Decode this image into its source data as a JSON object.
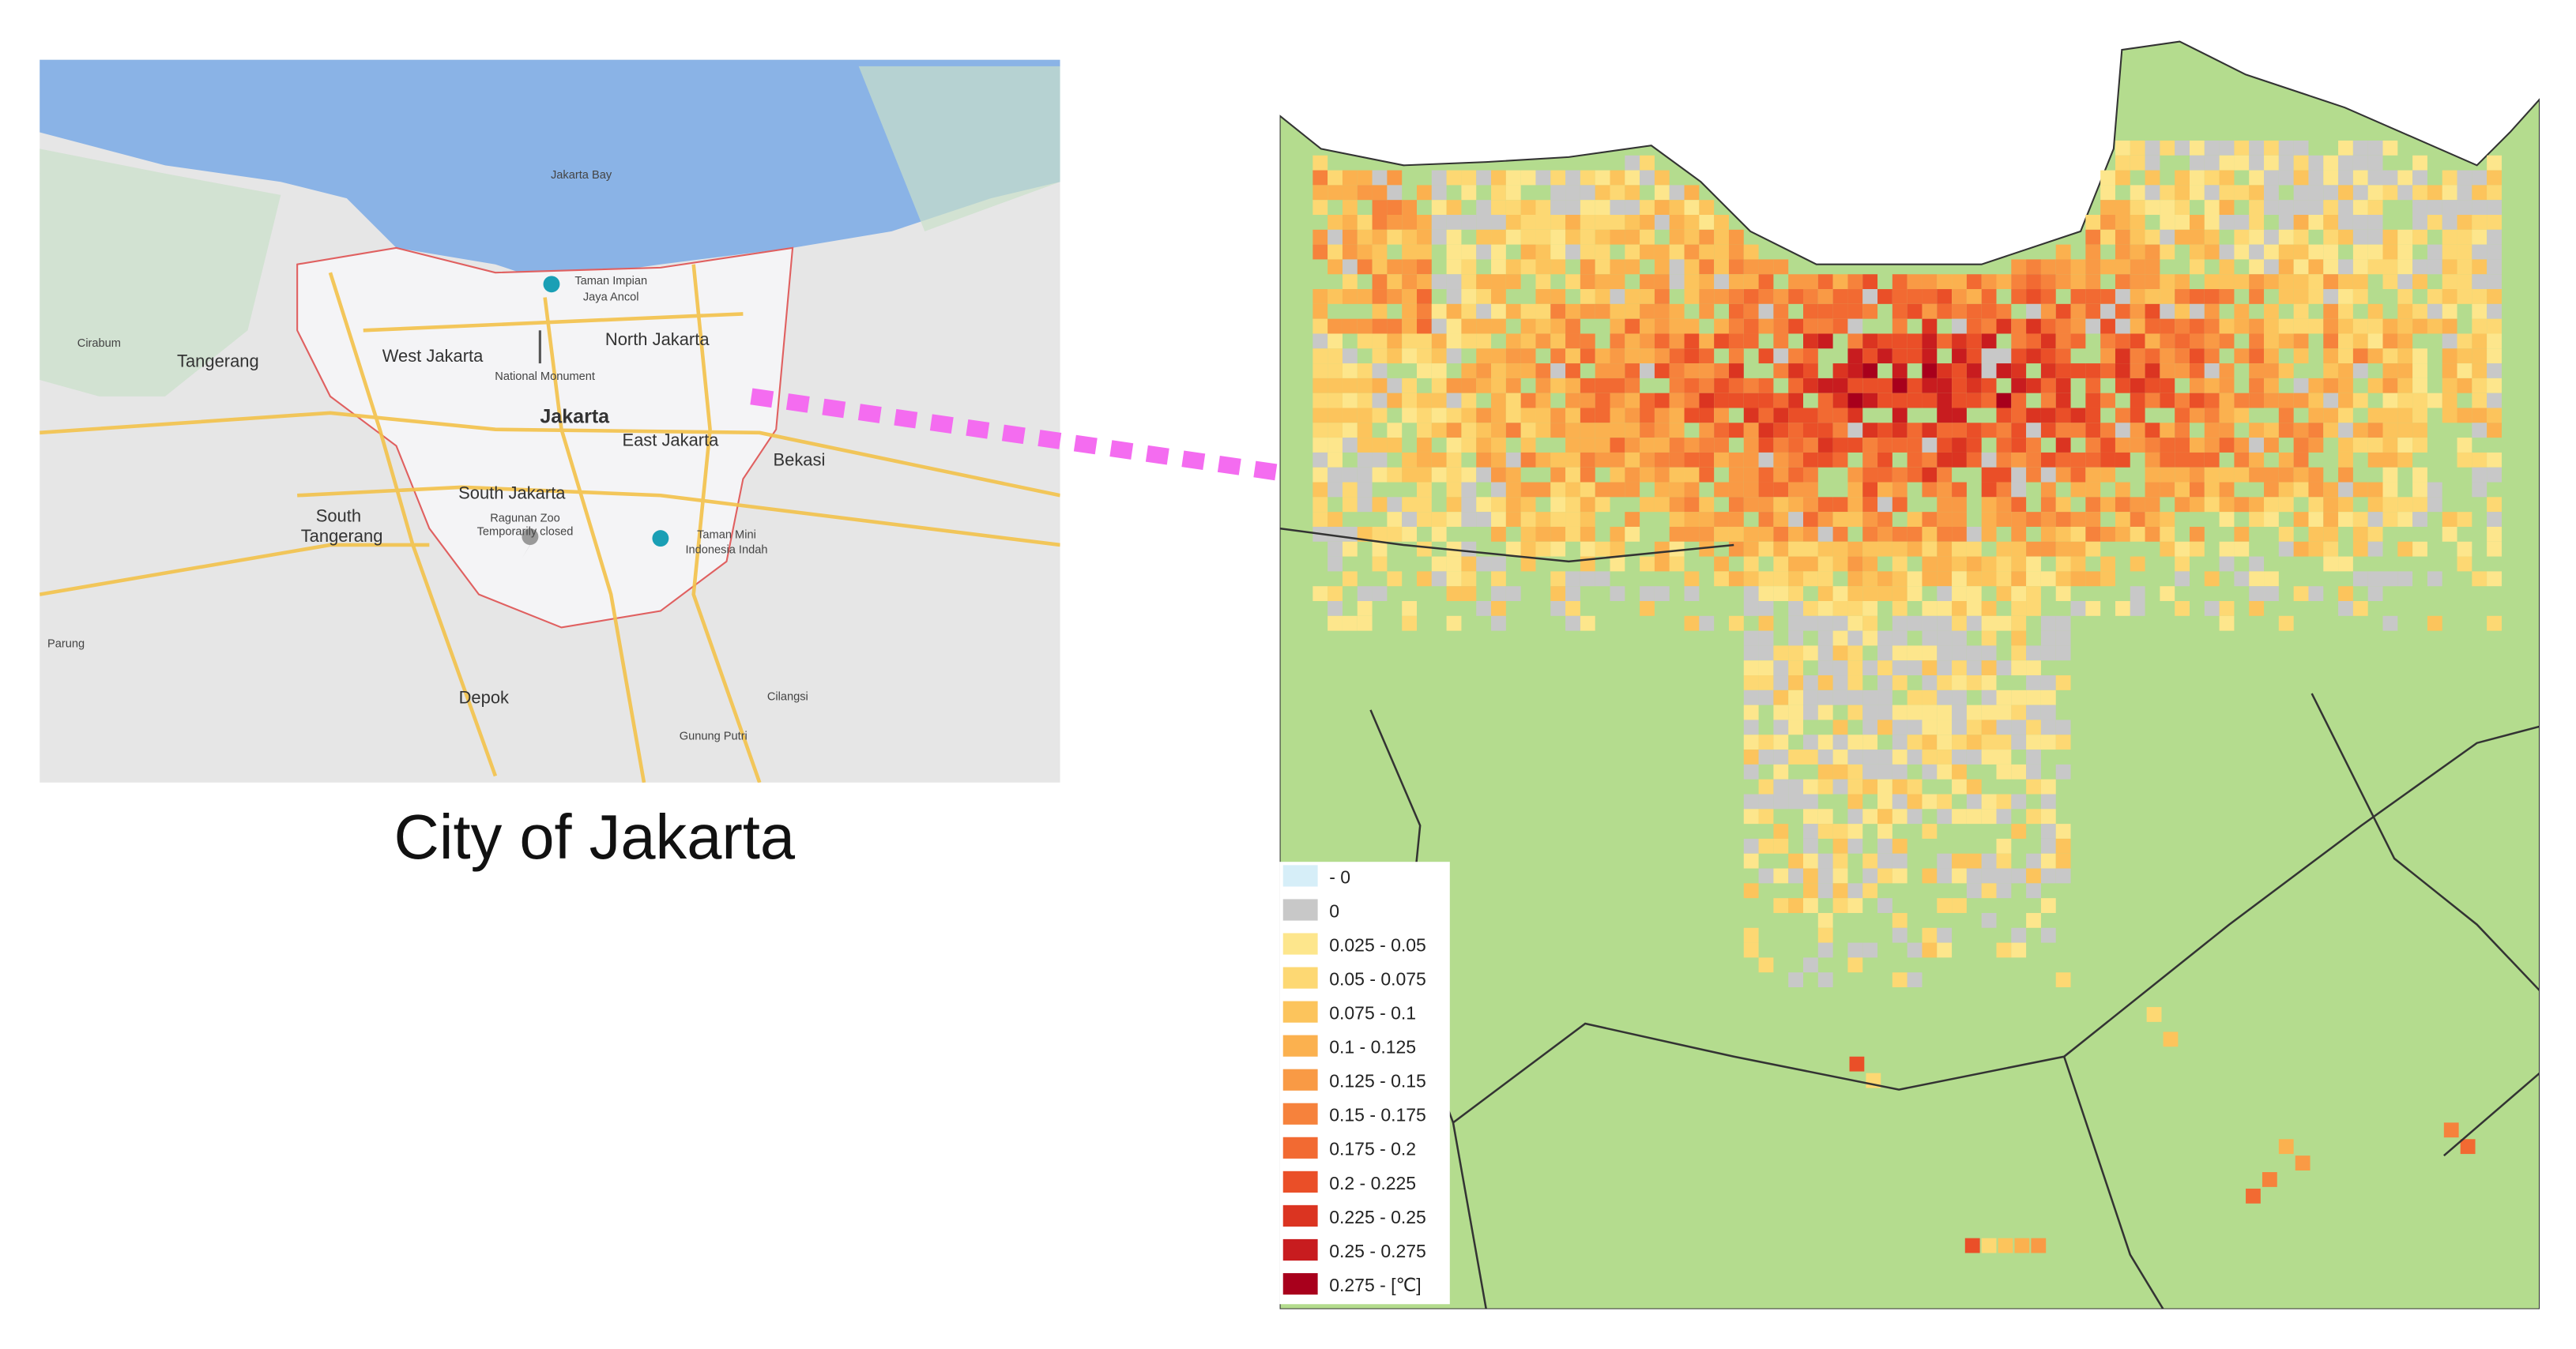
{
  "left_map": {
    "labels": [
      {
        "text": "Jakarta Bay",
        "size": "s"
      },
      {
        "text": "Taman Impian",
        "size": "s"
      },
      {
        "text": "Jaya Ancol",
        "size": "s"
      },
      {
        "text": "Cirabum",
        "size": "s"
      },
      {
        "text": "Tangerang",
        "size": "m"
      },
      {
        "text": "West Jakarta",
        "size": "m"
      },
      {
        "text": "North Jakarta",
        "size": "m"
      },
      {
        "text": "National Monument",
        "size": "s"
      },
      {
        "text": "Jakarta",
        "size": "l"
      },
      {
        "text": "East Jakarta",
        "size": "m"
      },
      {
        "text": "Bekasi",
        "size": "m"
      },
      {
        "text": "South Jakarta",
        "size": "m"
      },
      {
        "text": "South",
        "size": "m"
      },
      {
        "text": "Tangerang",
        "size": "m"
      },
      {
        "text": "Ragunan Zoo",
        "size": "s"
      },
      {
        "text": "Temporarily closed",
        "size": "s"
      },
      {
        "text": "Taman Mini",
        "size": "s"
      },
      {
        "text": "Indonesia Indah",
        "size": "s"
      },
      {
        "text": "Depok",
        "size": "m"
      },
      {
        "text": "Cilangsi",
        "size": "s"
      },
      {
        "text": "Gunung Putri",
        "size": "s"
      },
      {
        "text": "Parung",
        "size": "s"
      }
    ]
  },
  "caption": "City of Jakarta",
  "legend": {
    "items": [
      {
        "label": "- 0",
        "color": "#d6eef8"
      },
      {
        "label": "0",
        "color": "#c8c8c8"
      },
      {
        "label": "0.025 - 0.05",
        "color": "#fde68c"
      },
      {
        "label": "0.05 - 0.075",
        "color": "#fdd873"
      },
      {
        "label": "0.075 - 0.1",
        "color": "#fcc45c"
      },
      {
        "label": "0.1 - 0.125",
        "color": "#fbb14f"
      },
      {
        "label": "0.125 - 0.15",
        "color": "#f99a45"
      },
      {
        "label": "0.15 - 0.175",
        "color": "#f6823c"
      },
      {
        "label": "0.175 - 0.2",
        "color": "#f26a32"
      },
      {
        "label": "0.2 - 0.225",
        "color": "#ea4f28"
      },
      {
        "label": "0.225 - 0.25",
        "color": "#db3421"
      },
      {
        "label": "0.25 - 0.275",
        "color": "#c81c1f"
      },
      {
        "label": "0.275 - [℃]",
        "color": "#a8001c"
      }
    ]
  }
}
